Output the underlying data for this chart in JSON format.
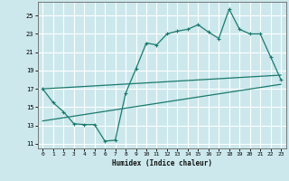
{
  "title": "",
  "xlabel": "Humidex (Indice chaleur)",
  "bg_color": "#cce8ec",
  "grid_color": "#ffffff",
  "line_color": "#1a7a6e",
  "xlim": [
    -0.5,
    23.5
  ],
  "ylim": [
    10.5,
    26.5
  ],
  "xticks": [
    0,
    1,
    2,
    3,
    4,
    5,
    6,
    7,
    8,
    9,
    10,
    11,
    12,
    13,
    14,
    15,
    16,
    17,
    18,
    19,
    20,
    21,
    22,
    23
  ],
  "yticks": [
    11,
    13,
    15,
    17,
    19,
    21,
    23,
    25
  ],
  "data_x": [
    0,
    1,
    2,
    3,
    4,
    5,
    6,
    7,
    8,
    9,
    10,
    11,
    12,
    13,
    14,
    15,
    16,
    17,
    18,
    19,
    20,
    21,
    22,
    23
  ],
  "data_y": [
    17.0,
    15.5,
    14.5,
    13.2,
    13.1,
    13.1,
    11.3,
    11.4,
    16.5,
    19.2,
    22.0,
    21.8,
    23.0,
    23.3,
    23.5,
    24.0,
    23.2,
    22.5,
    25.7,
    23.5,
    23.0,
    23.0,
    20.5,
    18.0
  ],
  "line1_x": [
    0,
    23
  ],
  "line1_y": [
    17.0,
    18.5
  ],
  "line2_x": [
    0,
    23
  ],
  "line2_y": [
    13.5,
    17.5
  ]
}
